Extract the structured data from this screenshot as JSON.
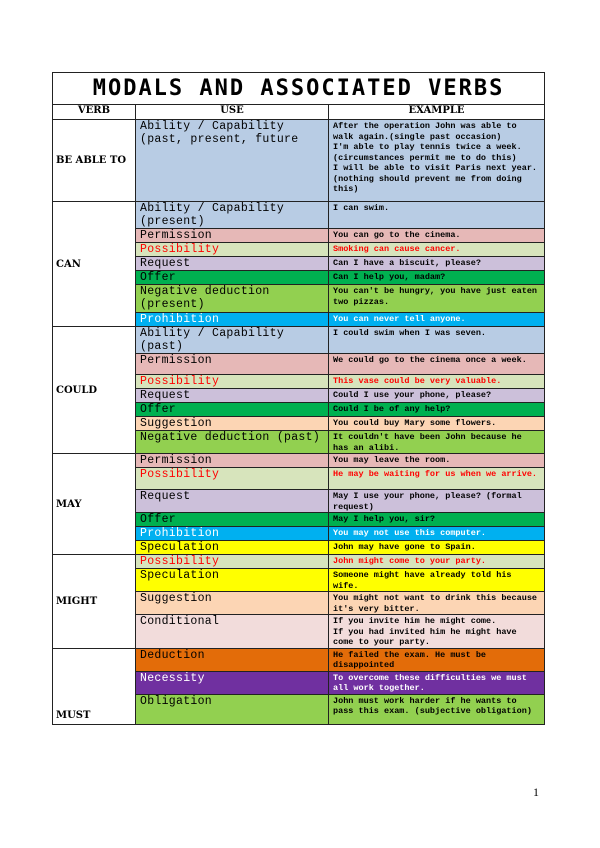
{
  "title": "MODALS AND ASSOCIATED VERBS",
  "headers": {
    "verb": "VERB",
    "use": "USE",
    "example": "EXAMPLE"
  },
  "colors": {
    "blue": "#b8cce4",
    "pink": "#e6b8b7",
    "lightgreen": "#d7e4bc",
    "lavender": "#ccc0da",
    "green": "#00b050",
    "lime": "#92d050",
    "cyan": "#00b0f0",
    "peach": "#fcd5b4",
    "yellow": "#ffff00",
    "lightpink": "#f2dcdb",
    "orange": "#e36c09",
    "purple": "#7030a0"
  },
  "groups": [
    {
      "verb": "BE ABLE TO",
      "rows": [
        {
          "use": "Ability / Capability (past, present, future",
          "example": "After the operation John was able to walk again.(single past occasion)\nI'm able to play tennis twice a week. (circumstances permit me to do this)\nI will be able to visit Paris next year. (nothing should prevent me from doing this)",
          "color": "blue"
        }
      ]
    },
    {
      "verb": "CAN",
      "rows": [
        {
          "use": "Ability / Capability (present)",
          "example": "I can swim.",
          "color": "blue"
        },
        {
          "use": "Permission",
          "example": "You can go to the cinema.",
          "color": "pink"
        },
        {
          "use": "Possibility",
          "example": "Smoking can cause cancer.",
          "color": "lightgreen",
          "text": "red"
        },
        {
          "use": "Request",
          "example": "Can I have a biscuit, please?",
          "color": "lavender"
        },
        {
          "use": "Offer",
          "example": "Can I help you, madam?",
          "color": "green"
        },
        {
          "use": "Negative deduction (present)",
          "example": "You can't be hungry, you have just eaten two pizzas.",
          "color": "lime"
        },
        {
          "use": "Prohibition",
          "example": "You can never tell anyone.",
          "color": "cyan",
          "text": "white"
        }
      ]
    },
    {
      "verb": "COULD",
      "rows": [
        {
          "use": "Ability / Capability (past)",
          "example": "I could swim when I was seven.",
          "color": "blue"
        },
        {
          "use": "Permission",
          "example": "We could go to the cinema once a week.",
          "color": "pink"
        },
        {
          "use": "Possibility",
          "example": "This vase could be very valuable.",
          "color": "lightgreen",
          "text": "red"
        },
        {
          "use": "Request",
          "example": "Could I use your phone, please?",
          "color": "lavender"
        },
        {
          "use": "Offer",
          "example": "Could I be of any help?",
          "color": "green"
        },
        {
          "use": "Suggestion",
          "example": "You could buy Mary some flowers.",
          "color": "peach"
        },
        {
          "use": "Negative deduction (past)",
          "example": "It couldn't have been John because he has an alibi.",
          "color": "lime"
        }
      ]
    },
    {
      "verb": "MAY",
      "rows": [
        {
          "use": "Permission",
          "example": "You may leave the room.",
          "color": "pink"
        },
        {
          "use": "Possibility",
          "example": "He may be waiting for us when we arrive.",
          "color": "lightgreen",
          "text": "red"
        },
        {
          "use": "Request",
          "example": "May I use your phone, please? (formal request)",
          "color": "lavender"
        },
        {
          "use": "Offer",
          "example": "May I help you, sir?",
          "color": "green"
        },
        {
          "use": "Prohibition",
          "example": "You may not use this computer.",
          "color": "cyan",
          "text": "white"
        },
        {
          "use": "Speculation",
          "example": "John may have gone to Spain.",
          "color": "yellow"
        }
      ]
    },
    {
      "verb": "MIGHT",
      "rows": [
        {
          "use": "Possibility",
          "example": "John might come to your party.",
          "color": "lightgreen",
          "text": "red"
        },
        {
          "use": "Speculation",
          "example": "Someone might have already told his wife.",
          "color": "yellow"
        },
        {
          "use": "Suggestion",
          "example": "You might not want to drink this because it's very bitter.",
          "color": "peach"
        },
        {
          "use": "Conditional",
          "example": "If you invite him he might come.\nIf you had invited him he might have come to your party.",
          "color": "lightpink"
        }
      ]
    },
    {
      "verb": "MUST",
      "rows": [
        {
          "use": "Deduction",
          "example": "He failed the exam.  He must be disappointed",
          "color": "orange"
        },
        {
          "use": "Necessity",
          "example": "To overcome these difficulties we must all work together.",
          "color": "purple",
          "text": "white"
        },
        {
          "use": "Obligation",
          "example": "John must work harder if he wants to pass this exam. (subjective obligation)",
          "color": "lime"
        }
      ]
    }
  ],
  "page_number": "1"
}
